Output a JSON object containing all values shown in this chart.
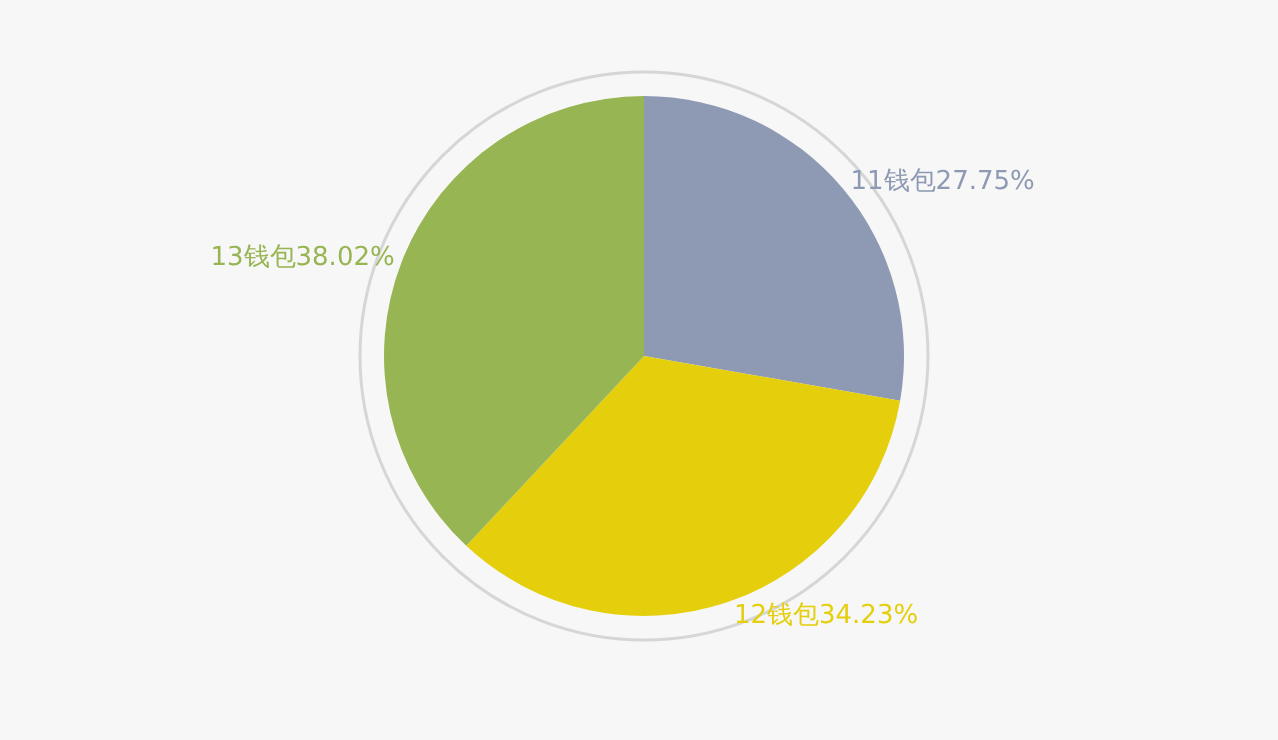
{
  "chart_data": {
    "type": "pie",
    "categories": [
      "11钱包",
      "12钱包",
      "13钱包"
    ],
    "values": [
      27.75,
      34.23,
      38.02
    ],
    "value_labels": [
      "27.75%",
      "34.23%",
      "38.02%"
    ],
    "colors": [
      "#8e9ab3",
      "#e5cf0d",
      "#97b552"
    ],
    "legend": false
  }
}
